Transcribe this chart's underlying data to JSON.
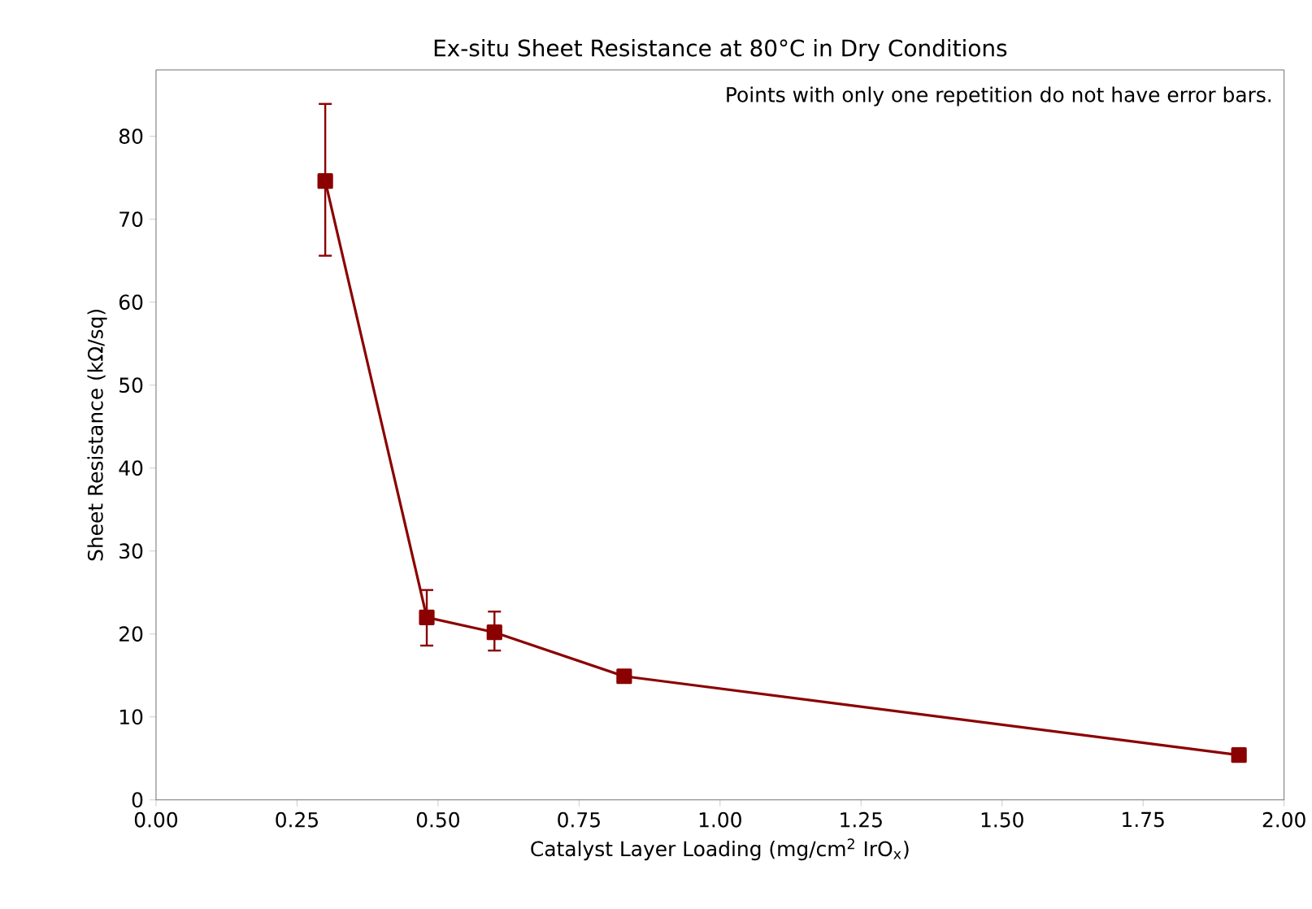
{
  "chart_data": {
    "type": "line",
    "title": "Ex-situ Sheet Resistance at 80°C in Dry Conditions",
    "xlabel": "Catalyst Layer Loading (mg/cm$^{2}$ IrO$_{x}$)",
    "ylabel": "Sheet Resistance (kΩ/sq)",
    "annotations": [
      "Points with only one repetition do not have error bars."
    ],
    "x": [
      0.3,
      0.48,
      0.6,
      0.83,
      1.92
    ],
    "series": [
      {
        "color": "#8b0000",
        "values": [
          74.6,
          22.0,
          20.2,
          14.9,
          5.4
        ],
        "errors": [
          [
            65.6,
            83.9
          ],
          [
            18.6,
            25.3
          ],
          [
            18.0,
            22.7
          ],
          null,
          null
        ]
      }
    ],
    "xlim": [
      0,
      2
    ],
    "ylim": [
      0,
      88
    ],
    "xticks": [
      {
        "value": 0,
        "label": "0.00"
      },
      {
        "value": 0.25,
        "label": "0.25"
      },
      {
        "value": 0.5,
        "label": "0.50"
      },
      {
        "value": 0.75,
        "label": "0.75"
      },
      {
        "value": 1,
        "label": "1.00"
      },
      {
        "value": 1.25,
        "label": "1.25"
      },
      {
        "value": 1.5,
        "label": "1.50"
      },
      {
        "value": 1.75,
        "label": "1.75"
      },
      {
        "value": 2,
        "label": "2.00"
      }
    ],
    "yticks": [
      0,
      10,
      20,
      30,
      40,
      50,
      60,
      70,
      80
    ],
    "marker": "square",
    "line_style": "solid"
  }
}
